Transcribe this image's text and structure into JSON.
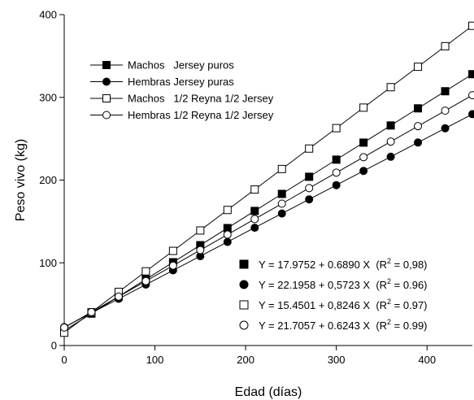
{
  "chart_data": {
    "type": "line",
    "xlabel": "Edad (días)",
    "ylabel": "Peso vivo (kg)",
    "xlim": [
      0,
      450
    ],
    "ylim": [
      0,
      400
    ],
    "x_ticks": [
      "0",
      "100",
      "200",
      "300",
      "400"
    ],
    "y_ticks": [
      "0",
      "100",
      "200",
      "300",
      "400"
    ],
    "grid": false,
    "legend_position": "top-left",
    "x": [
      0,
      30,
      60,
      90,
      120,
      150,
      180,
      210,
      240,
      270,
      300,
      330,
      360,
      390,
      420,
      450
    ],
    "series": [
      {
        "name": "Machos   Jersey puros",
        "marker": "filled-square",
        "equation": {
          "main": "Y = 17.9752 + 0.6890 X  (R",
          "sup": "2",
          "tail": " = 0,98)"
        },
        "values": [
          18.0,
          38.6,
          59.3,
          80.0,
          100.7,
          121.3,
          142.0,
          162.7,
          183.3,
          204.0,
          224.7,
          245.3,
          266.0,
          286.7,
          307.4,
          328.0
        ]
      },
      {
        "name": "Hembras Jersey puras",
        "marker": "filled-circle",
        "equation": {
          "main": "Y = 22.1958 + 0,5723 X  (R",
          "sup": "2",
          "tail": " = 0.96)"
        },
        "values": [
          22.2,
          39.4,
          56.5,
          73.7,
          90.9,
          108.0,
          125.2,
          142.4,
          159.6,
          176.7,
          193.9,
          211.1,
          228.2,
          245.4,
          262.6,
          279.7
        ]
      },
      {
        "name": "Machos   1/2 Reyna 1/2 Jersey",
        "marker": "open-square",
        "equation": {
          "main": "Y = 15.4501 + 0,8246 X  (R",
          "sup": "2",
          "tail": " = 0.97)"
        },
        "values": [
          15.5,
          40.2,
          64.9,
          89.7,
          114.4,
          139.1,
          163.9,
          188.6,
          213.4,
          238.1,
          262.8,
          287.6,
          312.3,
          337.0,
          361.8,
          386.5
        ]
      },
      {
        "name": "Hembras 1/2 Reyna 1/2 Jersey",
        "marker": "open-circle",
        "equation": {
          "main": "Y = 21.7057 + 0.6243 X  (R",
          "sup": "2",
          "tail": " = 0.99)"
        },
        "values": [
          21.7,
          40.4,
          59.2,
          77.9,
          96.6,
          115.4,
          134.1,
          152.9,
          171.5,
          190.3,
          209.0,
          227.7,
          246.5,
          265.2,
          283.9,
          302.6
        ]
      }
    ]
  }
}
